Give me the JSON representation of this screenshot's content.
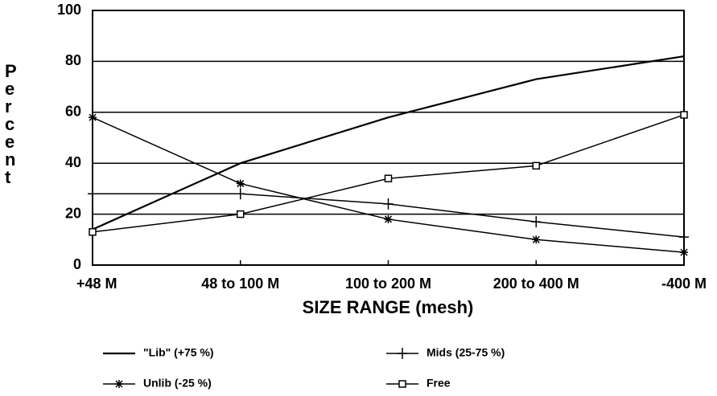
{
  "chart_data": {
    "type": "line",
    "xlabel": "SIZE RANGE (mesh)",
    "ylabel": "Percent",
    "categories": [
      "+48 M",
      "48 to 100 M",
      "100 to 200 M",
      "200 to 400 M",
      "-400 M"
    ],
    "series": [
      {
        "name": "\"Lib\" (+75 %)",
        "color": "#000000",
        "marker": "none",
        "values": [
          14,
          40,
          58,
          73,
          82
        ]
      },
      {
        "name": "Mids (25-75 %)",
        "color": "#000000",
        "marker": "plus",
        "values": [
          28,
          28,
          24,
          17,
          11
        ]
      },
      {
        "name": "Unlib (-25 %)",
        "color": "#000000",
        "marker": "star",
        "values": [
          58,
          32,
          18,
          10,
          5
        ]
      },
      {
        "name": "Free",
        "color": "#000000",
        "marker": "square",
        "values": [
          13,
          20,
          34,
          39,
          59
        ]
      }
    ],
    "ylim": [
      0,
      100
    ],
    "yticks": [
      0,
      20,
      40,
      60,
      80,
      100
    ],
    "grid": true
  }
}
